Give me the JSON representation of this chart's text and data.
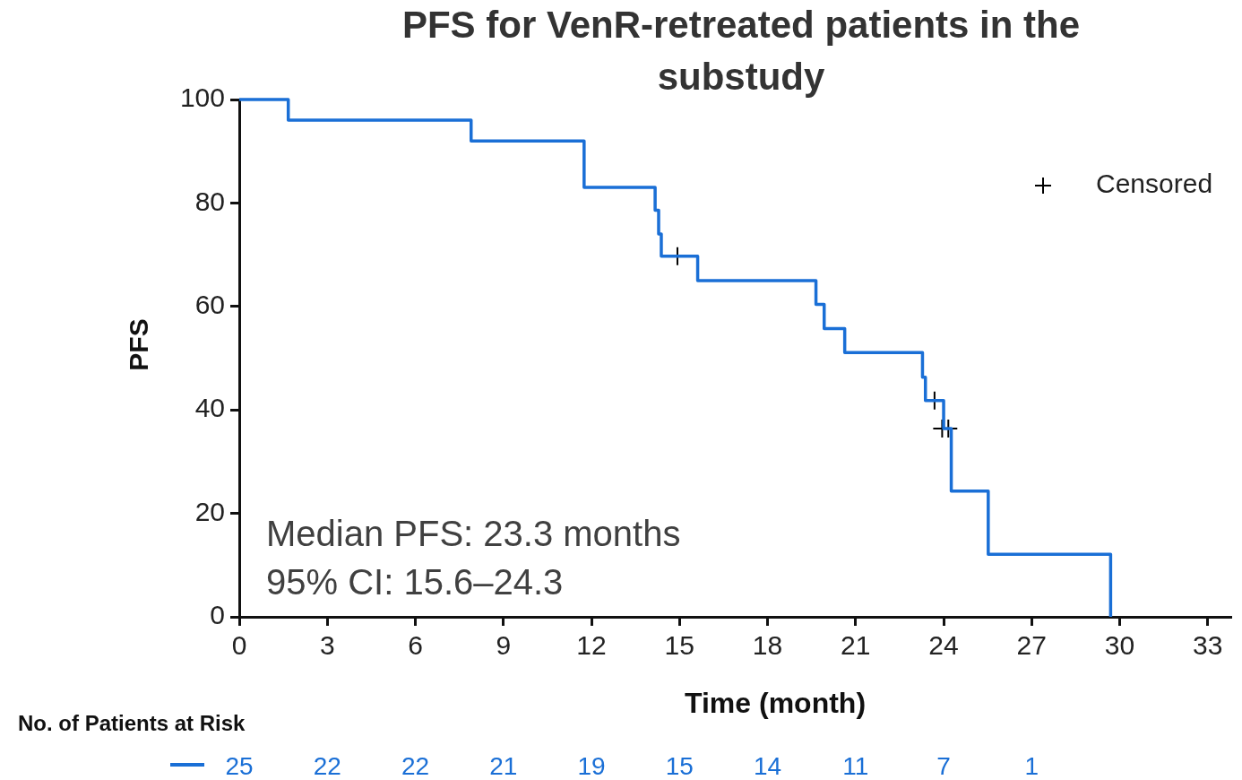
{
  "chart_data": {
    "type": "step",
    "title": "PFS for VenR-retreated patients in the substudy",
    "xlabel": "Time (month)",
    "ylabel": "PFS",
    "xlim": [
      0,
      33.8
    ],
    "xticks": [
      0,
      3,
      6,
      9,
      12,
      15,
      18,
      21,
      24,
      27,
      30,
      33
    ],
    "ylim": [
      0,
      100
    ],
    "yticks": [
      0,
      20,
      40,
      60,
      80,
      100
    ],
    "grid": false,
    "legend": "top right",
    "series": [
      {
        "color": "#1a6fd6",
        "x": [
          0,
          1.67,
          7.9,
          11.75,
          14.17,
          14.29,
          14.38,
          15.62,
          19.65,
          19.93,
          20.63,
          23.28,
          23.38,
          24.0,
          24.26,
          25.52,
          29.69
        ],
        "values": [
          100,
          96,
          92,
          83,
          78.6,
          74,
          69.7,
          65,
          60.4,
          55.7,
          51.1,
          46.3,
          41.8,
          36.4,
          24.3,
          12.1,
          0
        ]
      },
      {
        "type": "scatter",
        "name": "Censored",
        "color": "#000000",
        "marker": "cross",
        "x": [
          14.93,
          23.69,
          23.95,
          24.16
        ],
        "values": [
          69.7,
          41.8,
          36.4,
          36.4
        ]
      }
    ],
    "annotations": [
      "Median PFS: 23.3 months",
      "95% CI: 15.6–24.3",
      "No. of Patients at Risk",
      "25",
      "22",
      "22",
      "21",
      "19",
      "15",
      "14",
      "11",
      "7",
      "1"
    ]
  }
}
